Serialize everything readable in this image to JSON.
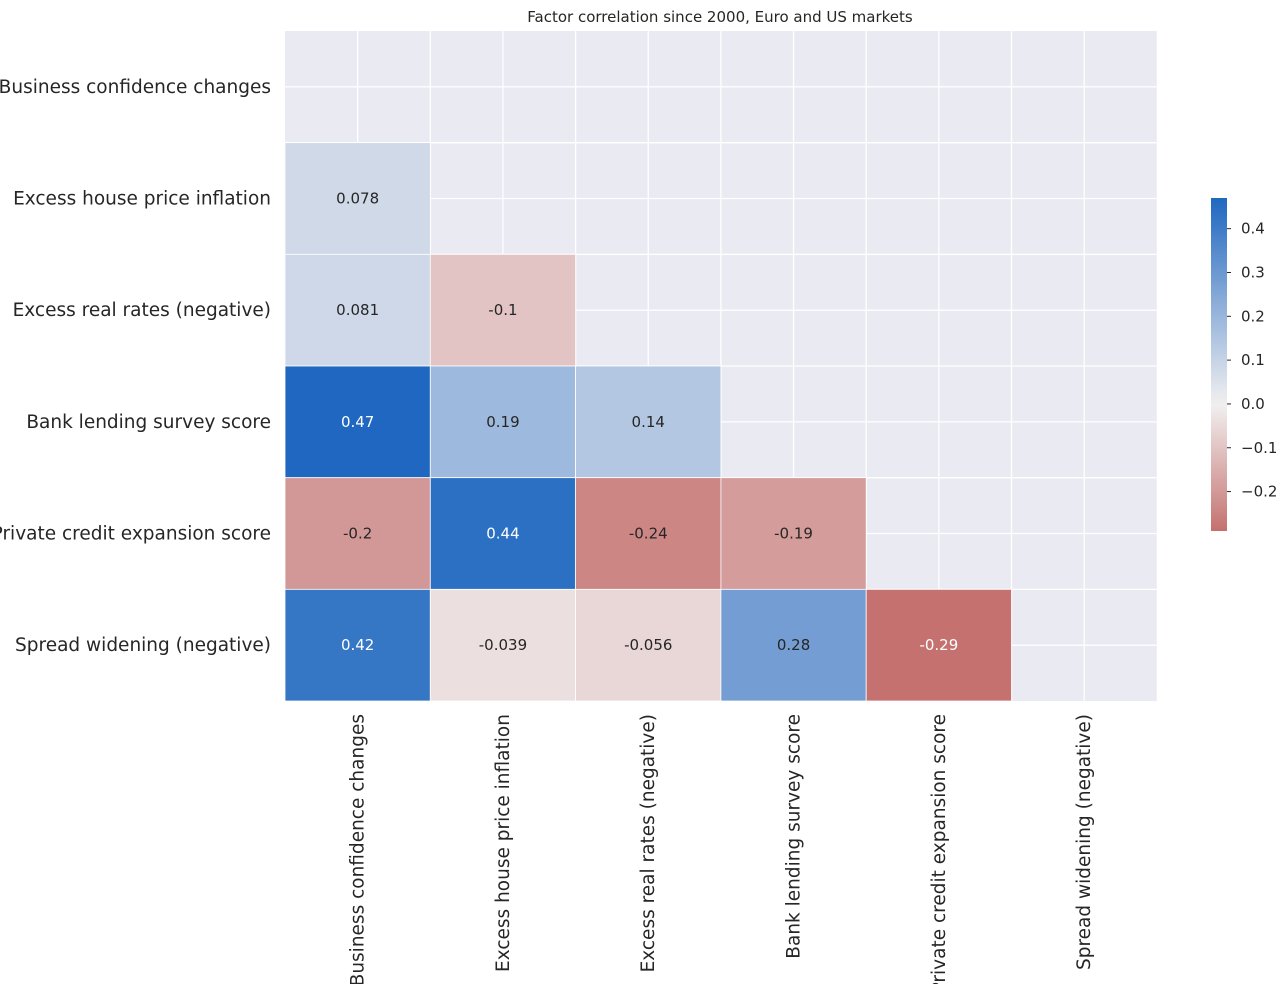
{
  "chart_data": {
    "type": "heatmap",
    "title": "Factor correlation since 2000, Euro and US markets",
    "row_labels": [
      "Business confidence changes",
      "Excess house price inflation",
      "Excess real rates (negative)",
      "Bank lending survey score",
      "Private credit expansion score",
      "Spread widening (negative)"
    ],
    "col_labels": [
      "Business confidence changes",
      "Excess house price inflation",
      "Excess real rates (negative)",
      "Bank lending survey score",
      "Private credit expansion score",
      "Spread widening (negative)"
    ],
    "mask": "upper-triangle-including-diagonal",
    "cells": [
      {
        "row": 1,
        "col": 0,
        "value": 0.078,
        "label": "0.078"
      },
      {
        "row": 2,
        "col": 0,
        "value": 0.081,
        "label": "0.081"
      },
      {
        "row": 2,
        "col": 1,
        "value": -0.1,
        "label": "-0.1"
      },
      {
        "row": 3,
        "col": 0,
        "value": 0.47,
        "label": "0.47"
      },
      {
        "row": 3,
        "col": 1,
        "value": 0.19,
        "label": "0.19"
      },
      {
        "row": 3,
        "col": 2,
        "value": 0.14,
        "label": "0.14"
      },
      {
        "row": 4,
        "col": 0,
        "value": -0.2,
        "label": "-0.2"
      },
      {
        "row": 4,
        "col": 1,
        "value": 0.44,
        "label": "0.44"
      },
      {
        "row": 4,
        "col": 2,
        "value": -0.24,
        "label": "-0.24"
      },
      {
        "row": 4,
        "col": 3,
        "value": -0.19,
        "label": "-0.19"
      },
      {
        "row": 5,
        "col": 0,
        "value": 0.42,
        "label": "0.42"
      },
      {
        "row": 5,
        "col": 1,
        "value": -0.039,
        "label": "-0.039"
      },
      {
        "row": 5,
        "col": 2,
        "value": -0.056,
        "label": "-0.056"
      },
      {
        "row": 5,
        "col": 3,
        "value": 0.28,
        "label": "0.28"
      },
      {
        "row": 5,
        "col": 4,
        "value": -0.29,
        "label": "-0.29"
      }
    ],
    "colorbar": {
      "vmin": -0.29,
      "vmax": 0.47,
      "ticks": [
        {
          "value": 0.4,
          "label": "0.4"
        },
        {
          "value": 0.3,
          "label": "0.3"
        },
        {
          "value": 0.2,
          "label": "0.2"
        },
        {
          "value": 0.1,
          "label": "0.1"
        },
        {
          "value": 0.0,
          "label": "0.0"
        },
        {
          "value": -0.1,
          "label": "−0.1"
        },
        {
          "value": -0.2,
          "label": "−0.2"
        }
      ],
      "colors": {
        "negative": "#c4716f",
        "center": "#f2f0f0",
        "positive": "#1f67c0"
      }
    },
    "grid": true,
    "background": "#eaeaf2"
  }
}
